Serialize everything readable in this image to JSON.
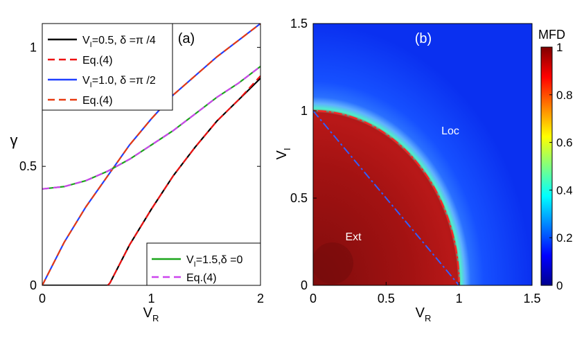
{
  "chart_data": [
    {
      "type": "line",
      "panel_label": "(a)",
      "xlabel": "V",
      "xlabel_sub": "R",
      "ylabel": "γ",
      "xlim": [
        0,
        2
      ],
      "ylim": [
        0,
        1.1
      ],
      "xticks": [
        "0",
        "1",
        "2"
      ],
      "yticks": [
        "0",
        "0.5",
        "1"
      ],
      "legend_top": [
        {
          "pre": "V",
          "sub": "I",
          "post": "=0.5, δ =π /4",
          "color": "#000000",
          "dash": "solid"
        },
        {
          "pre": "Eq.(4)",
          "sub": "",
          "post": "",
          "color": "#ee1111",
          "dash": "dashed"
        },
        {
          "pre": "V",
          "sub": "I",
          "post": "=1.0, δ =π /2",
          "color": "#1f3fff",
          "dash": "solid"
        },
        {
          "pre": "Eq.(4)",
          "sub": "",
          "post": "",
          "color": "#e83a10",
          "dash": "dashed"
        }
      ],
      "legend_bottom": [
        {
          "pre": "V",
          "sub": "I",
          "post": "=1.5,δ =0",
          "color": "#1aa51a",
          "dash": "solid"
        },
        {
          "pre": "Eq.(4)",
          "sub": "",
          "post": "",
          "color": "#cc44ee",
          "dash": "dashed"
        }
      ],
      "series": [
        {
          "color": "#000000",
          "dash": "solid",
          "x": [
            0,
            0.6,
            0.62,
            0.8,
            1.0,
            1.2,
            1.4,
            1.6,
            1.8,
            2.0
          ],
          "y": [
            0,
            0,
            0.01,
            0.17,
            0.32,
            0.46,
            0.58,
            0.69,
            0.78,
            0.87
          ]
        },
        {
          "color": "#ee1111",
          "dash": "dashed",
          "x": [
            0.6,
            0.62,
            0.8,
            1.0,
            1.2,
            1.4,
            1.6,
            1.8,
            2.0
          ],
          "y": [
            0,
            0.01,
            0.17,
            0.32,
            0.46,
            0.58,
            0.69,
            0.78,
            0.88
          ]
        },
        {
          "color": "#1f3fff",
          "dash": "solid",
          "x": [
            0,
            0.2,
            0.4,
            0.6,
            0.8,
            1.0,
            1.2,
            1.4,
            1.6,
            1.8,
            2.0
          ],
          "y": [
            0,
            0.18,
            0.33,
            0.46,
            0.59,
            0.7,
            0.8,
            0.88,
            0.96,
            1.03,
            1.1
          ]
        },
        {
          "color": "#e83a10",
          "dash": "dashed",
          "x": [
            0,
            0.2,
            0.4,
            0.6,
            0.8,
            1.0,
            1.2,
            1.4,
            1.6,
            1.8,
            2.0
          ],
          "y": [
            0,
            0.18,
            0.33,
            0.46,
            0.59,
            0.7,
            0.8,
            0.88,
            0.96,
            1.03,
            1.1
          ]
        },
        {
          "color": "#1aa51a",
          "dash": "solid",
          "x": [
            0,
            0.2,
            0.4,
            0.6,
            0.8,
            1.0,
            1.2,
            1.4,
            1.6,
            1.8,
            2.0
          ],
          "y": [
            0.405,
            0.415,
            0.44,
            0.48,
            0.53,
            0.59,
            0.65,
            0.72,
            0.79,
            0.85,
            0.92
          ]
        },
        {
          "color": "#cc44ee",
          "dash": "dashed",
          "x": [
            0,
            0.2,
            0.4,
            0.6,
            0.8,
            1.0,
            1.2,
            1.4,
            1.6,
            1.8,
            2.0
          ],
          "y": [
            0.405,
            0.415,
            0.44,
            0.48,
            0.53,
            0.59,
            0.65,
            0.72,
            0.79,
            0.85,
            0.92
          ]
        }
      ]
    },
    {
      "type": "heatmap",
      "panel_label": "(b)",
      "xlabel": "V",
      "xlabel_sub": "R",
      "ylabel": "V",
      "ylabel_sub": "I",
      "xlim": [
        0,
        1.5
      ],
      "ylim": [
        0,
        1.5
      ],
      "xticks": [
        "0",
        "0.5",
        "1",
        "1.5"
      ],
      "yticks": [
        "0",
        "0.5",
        "1",
        "1.5"
      ],
      "colorbar_title": "MFD",
      "colorbar_ticks": [
        "0",
        "0.2",
        "0.4",
        "0.6",
        "0.8",
        "1"
      ],
      "clim": [
        0,
        1
      ],
      "region_labels": [
        "Ext",
        "Loc"
      ],
      "boundary_circle": {
        "color": "#ff2020",
        "style": "dash-dot",
        "radius": 1
      },
      "boundary_line": {
        "color": "#3060ff",
        "style": "dash-dot",
        "from": [
          0,
          1
        ],
        "to": [
          1,
          0
        ]
      }
    }
  ]
}
